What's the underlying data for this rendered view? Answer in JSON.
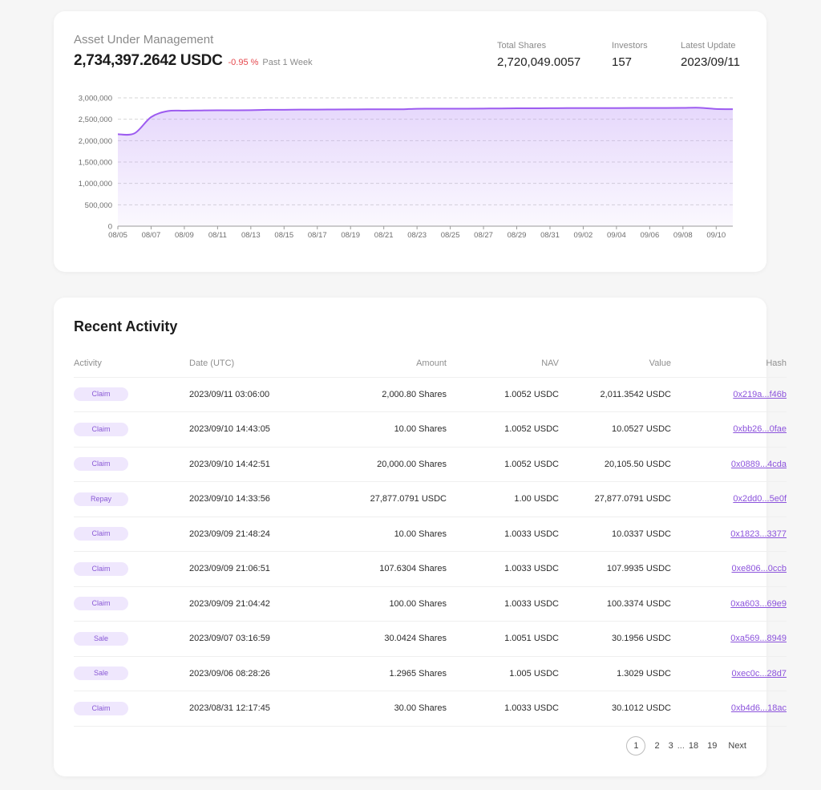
{
  "aum": {
    "label": "Asset Under Management",
    "value": "2,734,397.2642 USDC",
    "change": "-0.95 %",
    "period": "Past 1 Week",
    "stats": [
      {
        "label": "Total Shares",
        "value": "2,720,049.0057"
      },
      {
        "label": "Investors",
        "value": "157"
      },
      {
        "label": "Latest Update",
        "value": "2023/09/11"
      }
    ]
  },
  "colors": {
    "accent": "#9d5cf0",
    "negative": "#e5484d",
    "pill_bg": "#efe7fd",
    "pill_text": "#8a5ad6",
    "link": "#8c53dc"
  },
  "chart_data": {
    "type": "area",
    "title": "",
    "xlabel": "",
    "ylabel": "",
    "ylim": [
      0,
      3000000
    ],
    "yticks": [
      "0",
      "500,000",
      "1,000,000",
      "1,500,000",
      "2,000,000",
      "2,500,000",
      "3,000,000"
    ],
    "ytick_values": [
      0,
      500000,
      1000000,
      1500000,
      2000000,
      2500000,
      3000000
    ],
    "xticks": [
      "08/05",
      "08/07",
      "08/09",
      "08/11",
      "08/13",
      "08/15",
      "08/17",
      "08/19",
      "08/21",
      "08/23",
      "08/25",
      "08/27",
      "08/29",
      "08/31",
      "09/02",
      "09/04",
      "09/06",
      "09/08",
      "09/10"
    ],
    "grid": true,
    "x": [
      "08/05",
      "08/06",
      "08/07",
      "08/08",
      "08/09",
      "08/10",
      "08/11",
      "08/12",
      "08/13",
      "08/14",
      "08/15",
      "08/16",
      "08/17",
      "08/18",
      "08/19",
      "08/20",
      "08/21",
      "08/22",
      "08/23",
      "08/24",
      "08/25",
      "08/26",
      "08/27",
      "08/28",
      "08/29",
      "08/30",
      "08/31",
      "09/01",
      "09/02",
      "09/03",
      "09/04",
      "09/05",
      "09/06",
      "09/07",
      "09/08",
      "09/09",
      "09/10",
      "09/11"
    ],
    "series": [
      {
        "values": [
          2150000,
          2170000,
          2550000,
          2690000,
          2700000,
          2705000,
          2710000,
          2710000,
          2712000,
          2720000,
          2722000,
          2725000,
          2726000,
          2728000,
          2730000,
          2732000,
          2733000,
          2733000,
          2745000,
          2746000,
          2746000,
          2748000,
          2750000,
          2752000,
          2756000,
          2757000,
          2758000,
          2760000,
          2760000,
          2761000,
          2762000,
          2763000,
          2764000,
          2764000,
          2765000,
          2768000,
          2740000,
          2734397
        ]
      }
    ]
  },
  "activity": {
    "title": "Recent Activity",
    "columns": [
      "Activity",
      "Date (UTC)",
      "Amount",
      "NAV",
      "Value",
      "Hash"
    ],
    "rows": [
      {
        "type": "Claim",
        "date": "2023/09/11 03:06:00",
        "amount": "2,000.80 Shares",
        "nav": "1.0052 USDC",
        "value": "2,011.3542 USDC",
        "hash": "0x219a...f46b"
      },
      {
        "type": "Claim",
        "date": "2023/09/10 14:43:05",
        "amount": "10.00 Shares",
        "nav": "1.0052 USDC",
        "value": "10.0527 USDC",
        "hash": "0xbb26...0fae"
      },
      {
        "type": "Claim",
        "date": "2023/09/10 14:42:51",
        "amount": "20,000.00 Shares",
        "nav": "1.0052 USDC",
        "value": "20,105.50 USDC",
        "hash": "0x0889...4cda"
      },
      {
        "type": "Repay",
        "date": "2023/09/10 14:33:56",
        "amount": "27,877.0791 USDC",
        "nav": "1.00 USDC",
        "value": "27,877.0791 USDC",
        "hash": "0x2dd0...5e0f"
      },
      {
        "type": "Claim",
        "date": "2023/09/09 21:48:24",
        "amount": "10.00 Shares",
        "nav": "1.0033 USDC",
        "value": "10.0337 USDC",
        "hash": "0x1823...3377"
      },
      {
        "type": "Claim",
        "date": "2023/09/09 21:06:51",
        "amount": "107.6304 Shares",
        "nav": "1.0033 USDC",
        "value": "107.9935 USDC",
        "hash": "0xe806...0ccb"
      },
      {
        "type": "Claim",
        "date": "2023/09/09 21:04:42",
        "amount": "100.00 Shares",
        "nav": "1.0033 USDC",
        "value": "100.3374 USDC",
        "hash": "0xa603...69e9"
      },
      {
        "type": "Sale",
        "date": "2023/09/07 03:16:59",
        "amount": "30.0424 Shares",
        "nav": "1.0051 USDC",
        "value": "30.1956 USDC",
        "hash": "0xa569...8949"
      },
      {
        "type": "Sale",
        "date": "2023/09/06 08:28:26",
        "amount": "1.2965 Shares",
        "nav": "1.005 USDC",
        "value": "1.3029 USDC",
        "hash": "0xec0c...28d7"
      },
      {
        "type": "Claim",
        "date": "2023/08/31 12:17:45",
        "amount": "30.00 Shares",
        "nav": "1.0033 USDC",
        "value": "30.1012 USDC",
        "hash": "0xb4d6...18ac"
      }
    ]
  },
  "pagination": {
    "current": "1",
    "pages": [
      "2",
      "3"
    ],
    "ellipsis": "...",
    "last_pages": [
      "18",
      "19"
    ],
    "next": "Next"
  }
}
